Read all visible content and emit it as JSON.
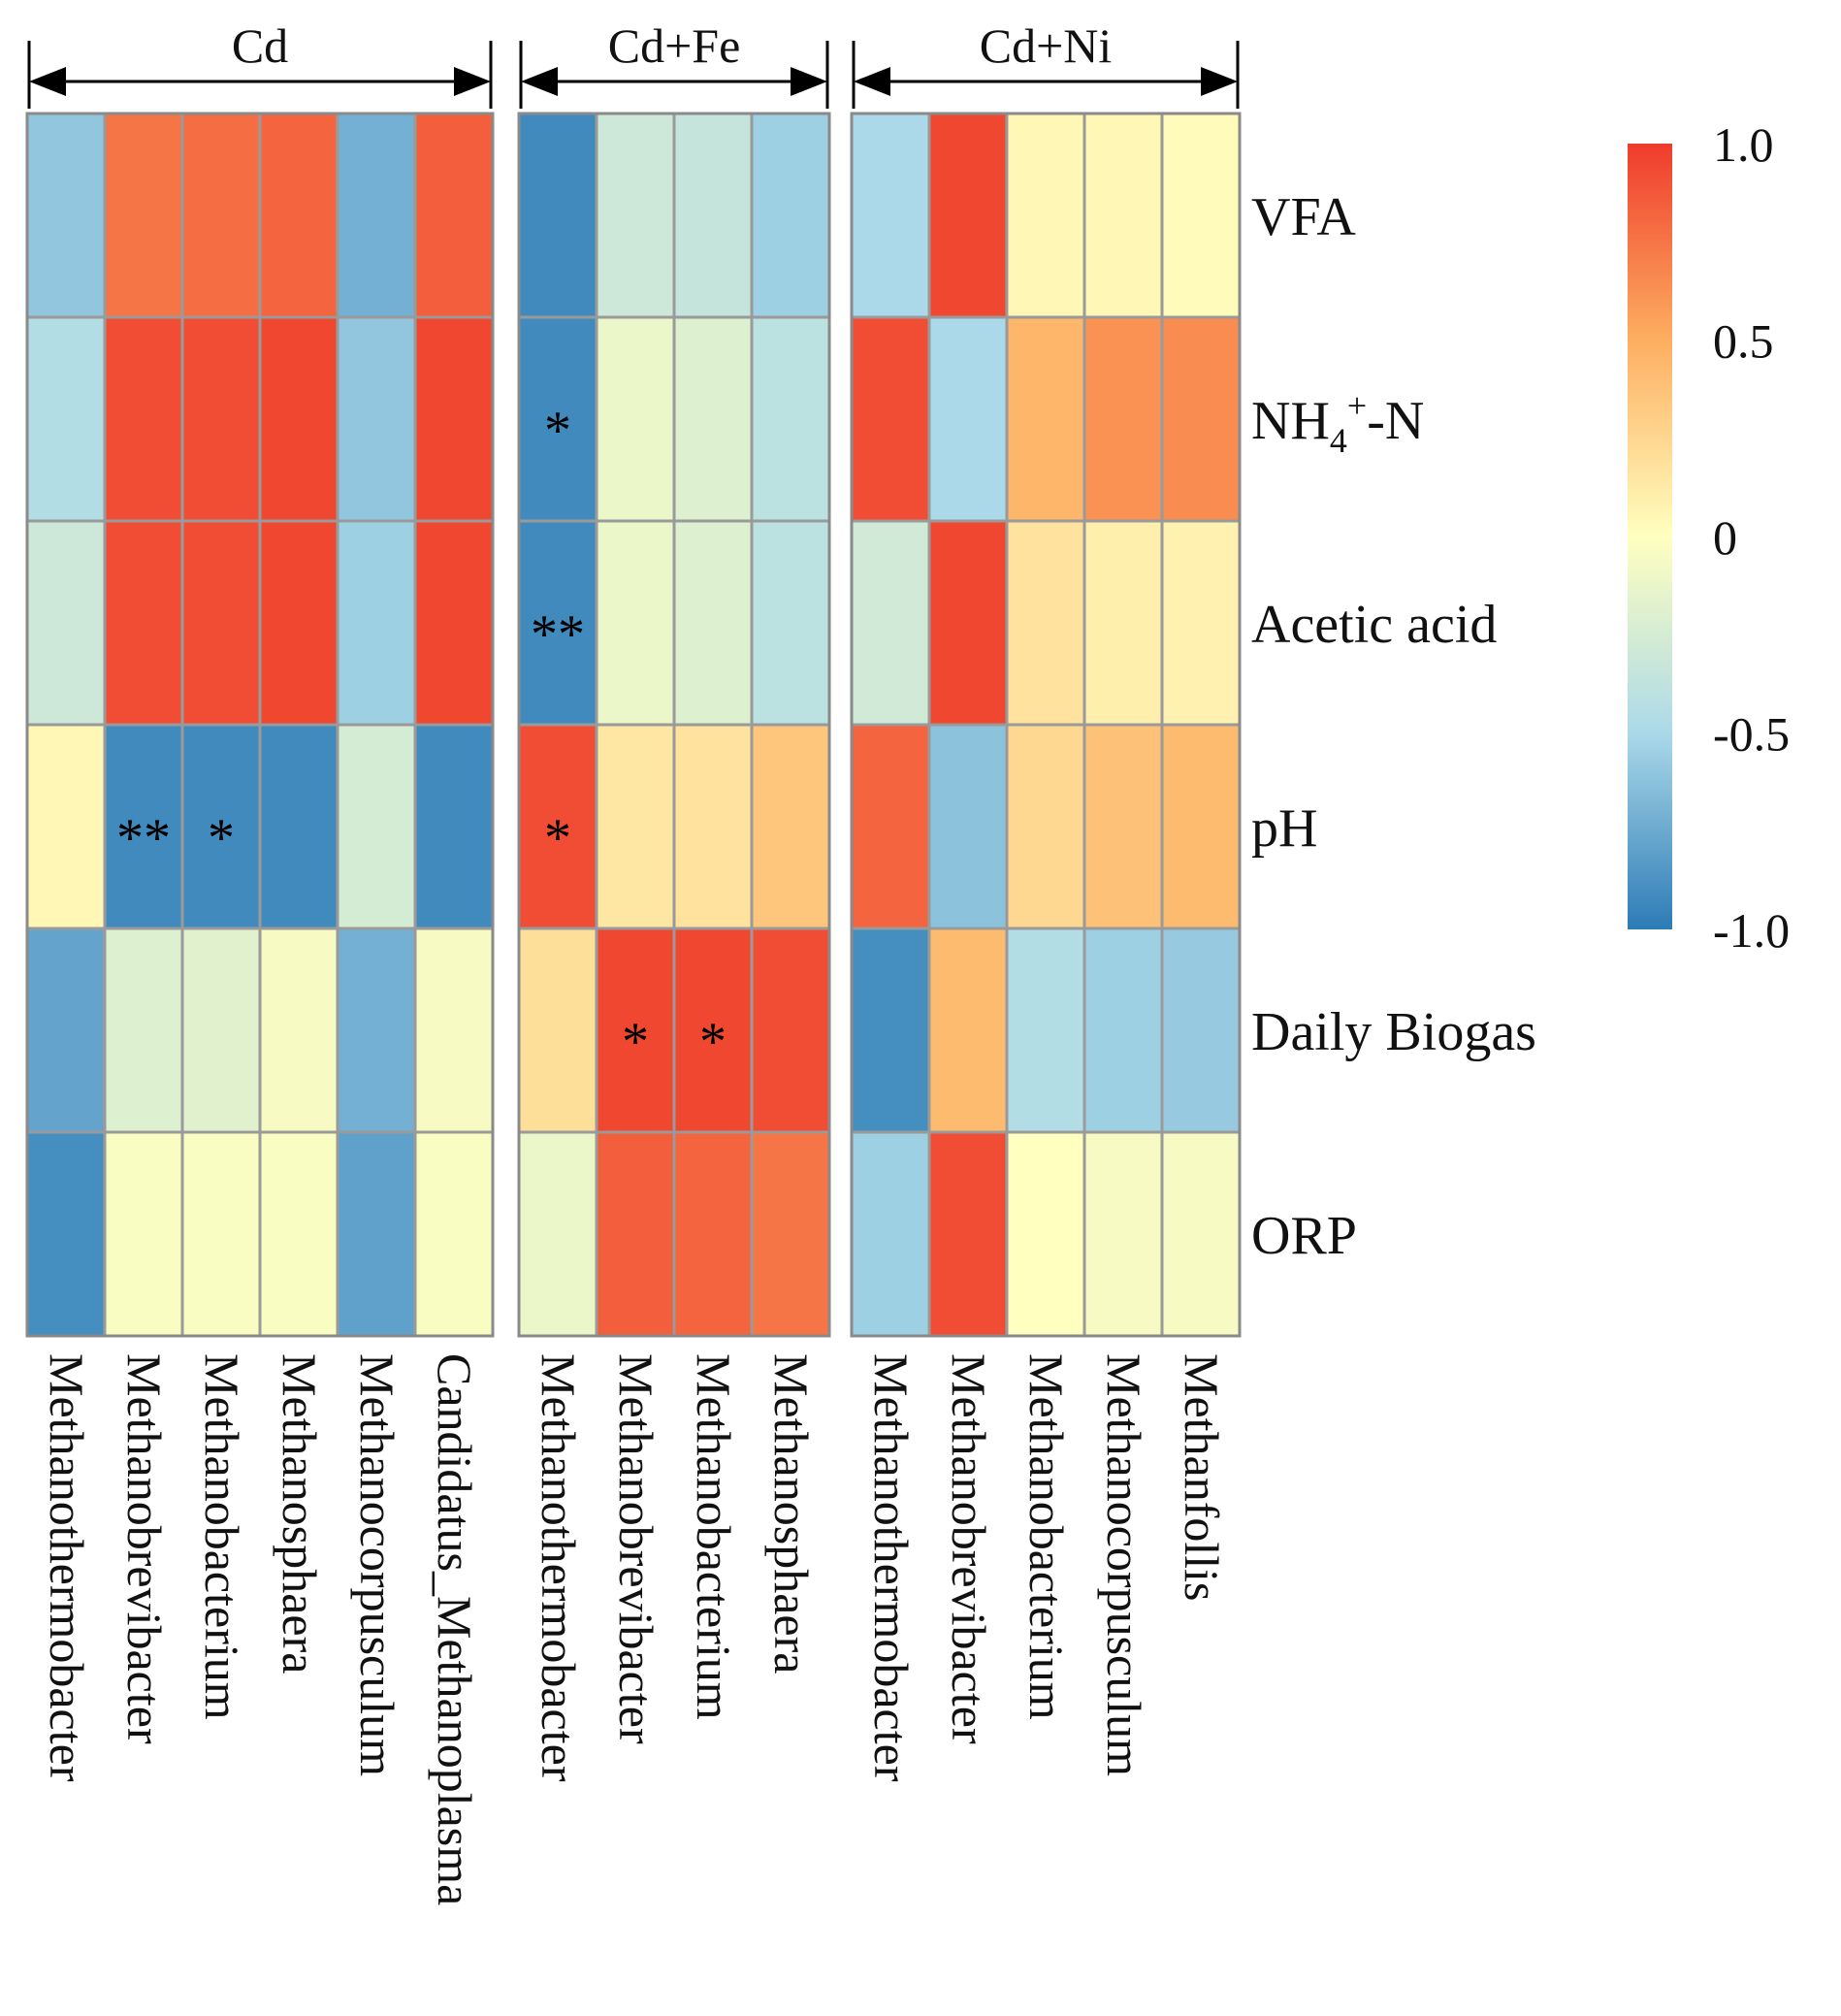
{
  "chart_data": {
    "type": "heatmap",
    "rows": [
      "VFA",
      "NH4+-N",
      "Acetic acid",
      "pH",
      "Daily Biogas",
      "ORP"
    ],
    "colorbar": {
      "min": -1.0,
      "max": 1.0,
      "ticks": [
        "1.0",
        "0.5",
        "0",
        "-0.5",
        "-1.0"
      ],
      "colors": [
        "#ef3b2c",
        "#fdae61",
        "#ffffbf",
        "#abd9e9",
        "#2c7bb6"
      ]
    },
    "panels": [
      {
        "title": "Cd",
        "columns": [
          "Methanothermobacter",
          "Methanobrevibacter",
          "Methanobacterium",
          "Methanosphaera",
          "Methanocorpusculum",
          "Candidatus_Methanoplasma"
        ],
        "values": [
          [
            -0.6,
            0.75,
            0.78,
            0.82,
            -0.72,
            0.85
          ],
          [
            -0.45,
            0.92,
            0.92,
            0.95,
            -0.6,
            0.95
          ],
          [
            -0.3,
            0.92,
            0.92,
            0.95,
            -0.55,
            0.95
          ],
          [
            0.05,
            -0.92,
            -0.92,
            -0.92,
            -0.25,
            -0.92
          ],
          [
            -0.78,
            -0.2,
            -0.18,
            -0.05,
            -0.72,
            -0.05
          ],
          [
            -0.9,
            -0.03,
            -0.03,
            -0.03,
            -0.8,
            -0.03
          ]
        ],
        "stars": [
          [
            "",
            "",
            "",
            "",
            "",
            ""
          ],
          [
            "",
            "",
            "",
            "",
            "",
            ""
          ],
          [
            "",
            "",
            "",
            "",
            "",
            ""
          ],
          [
            "",
            "**",
            "*",
            "",
            "",
            ""
          ],
          [
            "",
            "",
            "",
            "",
            "",
            ""
          ],
          [
            "",
            "",
            "",
            "",
            "",
            ""
          ]
        ]
      },
      {
        "title": "Cd+Fe",
        "columns": [
          "Methanothermobacter",
          "Methanobrevibacter",
          "Methanobacterium",
          "Methanosphaera"
        ],
        "values": [
          [
            -0.92,
            -0.3,
            -0.35,
            -0.55
          ],
          [
            -0.92,
            -0.12,
            -0.2,
            -0.4
          ],
          [
            -0.92,
            -0.12,
            -0.2,
            -0.4
          ],
          [
            0.92,
            0.15,
            0.18,
            0.35
          ],
          [
            0.2,
            0.95,
            0.95,
            0.92
          ],
          [
            -0.12,
            0.85,
            0.82,
            0.75
          ]
        ],
        "stars": [
          [
            "",
            "",
            "",
            ""
          ],
          [
            "*",
            "",
            "",
            ""
          ],
          [
            "**",
            "",
            "",
            ""
          ],
          [
            "*",
            "",
            "",
            ""
          ],
          [
            "",
            "*",
            "*",
            ""
          ],
          [
            "",
            "",
            "",
            ""
          ]
        ]
      },
      {
        "title": "Cd+Ni",
        "columns": [
          "Methanothermobacter",
          "Methanobrevibacter",
          "Methanobacterium",
          "Methanocorpusculum",
          "Methanfollis"
        ],
        "values": [
          [
            -0.5,
            0.95,
            0.05,
            0.05,
            0.02
          ],
          [
            0.92,
            -0.5,
            0.45,
            0.62,
            0.65
          ],
          [
            -0.28,
            0.95,
            0.18,
            0.1,
            0.08
          ],
          [
            0.82,
            -0.62,
            0.25,
            0.38,
            0.42
          ],
          [
            -0.9,
            0.42,
            -0.45,
            -0.55,
            -0.58
          ],
          [
            -0.55,
            0.92,
            0.0,
            -0.05,
            -0.05
          ]
        ],
        "stars": [
          [
            "",
            "",
            "",
            "",
            ""
          ],
          [
            "",
            "",
            "",
            "",
            ""
          ],
          [
            "",
            "",
            "",
            "",
            ""
          ],
          [
            "",
            "",
            "",
            "",
            ""
          ],
          [
            "",
            "",
            "",
            "",
            ""
          ],
          [
            "",
            "",
            "",
            "",
            ""
          ]
        ]
      }
    ]
  }
}
